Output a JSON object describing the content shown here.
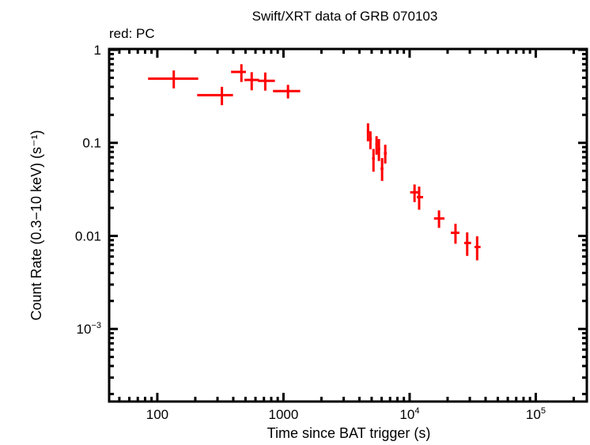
{
  "chart_data": {
    "type": "scatter",
    "title": "Swift/XRT data of GRB 070103",
    "subtitle": "red: PC",
    "xlabel": "Time since BAT trigger (s)",
    "ylabel": "Count Rate (0.3−10 keV) (s⁻¹)",
    "xscale": "log",
    "yscale": "log",
    "xlim": [
      41.5,
      254000
    ],
    "ylim": [
      0.000166,
      1.02
    ],
    "grid": false,
    "x_ticks": [
      {
        "value": 100,
        "label": "100",
        "sup": ""
      },
      {
        "value": 1000,
        "label": "1000",
        "sup": ""
      },
      {
        "value": 10000,
        "label": "10",
        "sup": "4"
      },
      {
        "value": 100000,
        "label": "10",
        "sup": "5"
      }
    ],
    "y_ticks": [
      {
        "value": 1,
        "label": "1",
        "sup": ""
      },
      {
        "value": 0.1,
        "label": "0.1",
        "sup": ""
      },
      {
        "value": 0.01,
        "label": "0.01",
        "sup": ""
      },
      {
        "value": 0.001,
        "label": "10",
        "sup": "−3"
      }
    ],
    "series": [
      {
        "color": "#ff0000",
        "mode": "PC",
        "points": [
          {
            "x": 135,
            "xlo": 84.5,
            "xhi": 211,
            "y": 0.49,
            "ylo": 0.385,
            "yhi": 0.6
          },
          {
            "x": 325,
            "xlo": 207,
            "xhi": 398,
            "y": 0.326,
            "ylo": 0.254,
            "yhi": 0.4
          },
          {
            "x": 464,
            "xlo": 384,
            "xhi": 504,
            "y": 0.578,
            "ylo": 0.451,
            "yhi": 0.7
          },
          {
            "x": 560,
            "xlo": 490,
            "xhi": 641,
            "y": 0.475,
            "ylo": 0.367,
            "yhi": 0.575
          },
          {
            "x": 717,
            "xlo": 628,
            "xhi": 855,
            "y": 0.464,
            "ylo": 0.364,
            "yhi": 0.57
          },
          {
            "x": 1086,
            "xlo": 826,
            "xhi": 1358,
            "y": 0.36,
            "ylo": 0.3,
            "yhi": 0.42
          },
          {
            "x": 4680,
            "xlo": 4580,
            "xhi": 4790,
            "y": 0.133,
            "ylo": 0.104,
            "yhi": 0.162
          },
          {
            "x": 4890,
            "xlo": 4800,
            "xhi": 5020,
            "y": 0.11,
            "ylo": 0.0855,
            "yhi": 0.133
          },
          {
            "x": 5170,
            "xlo": 5040,
            "xhi": 5300,
            "y": 0.068,
            "ylo": 0.049,
            "yhi": 0.086
          },
          {
            "x": 5470,
            "xlo": 5350,
            "xhi": 5600,
            "y": 0.0969,
            "ylo": 0.0746,
            "yhi": 0.118
          },
          {
            "x": 5710,
            "xlo": 5600,
            "xhi": 5850,
            "y": 0.086,
            "ylo": 0.0638,
            "yhi": 0.11
          },
          {
            "x": 6050,
            "xlo": 5880,
            "xhi": 6200,
            "y": 0.0528,
            "ylo": 0.039,
            "yhi": 0.0686
          },
          {
            "x": 6410,
            "xlo": 6250,
            "xhi": 6600,
            "y": 0.077,
            "ylo": 0.06,
            "yhi": 0.0955
          },
          {
            "x": 10940,
            "xlo": 10100,
            "xhi": 11800,
            "y": 0.0294,
            "ylo": 0.0231,
            "yhi": 0.0357
          },
          {
            "x": 11900,
            "xlo": 11400,
            "xhi": 12800,
            "y": 0.0261,
            "ylo": 0.0191,
            "yhi": 0.0339
          },
          {
            "x": 17100,
            "xlo": 15600,
            "xhi": 18900,
            "y": 0.0154,
            "ylo": 0.0122,
            "yhi": 0.0188
          },
          {
            "x": 23100,
            "xlo": 21200,
            "xhi": 24800,
            "y": 0.0108,
            "ylo": 0.00824,
            "yhi": 0.0135
          },
          {
            "x": 28600,
            "xlo": 27100,
            "xhi": 30700,
            "y": 0.0084,
            "ylo": 0.0061,
            "yhi": 0.0109
          },
          {
            "x": 34300,
            "xlo": 32700,
            "xhi": 36500,
            "y": 0.0076,
            "ylo": 0.00546,
            "yhi": 0.0099
          }
        ]
      }
    ]
  }
}
